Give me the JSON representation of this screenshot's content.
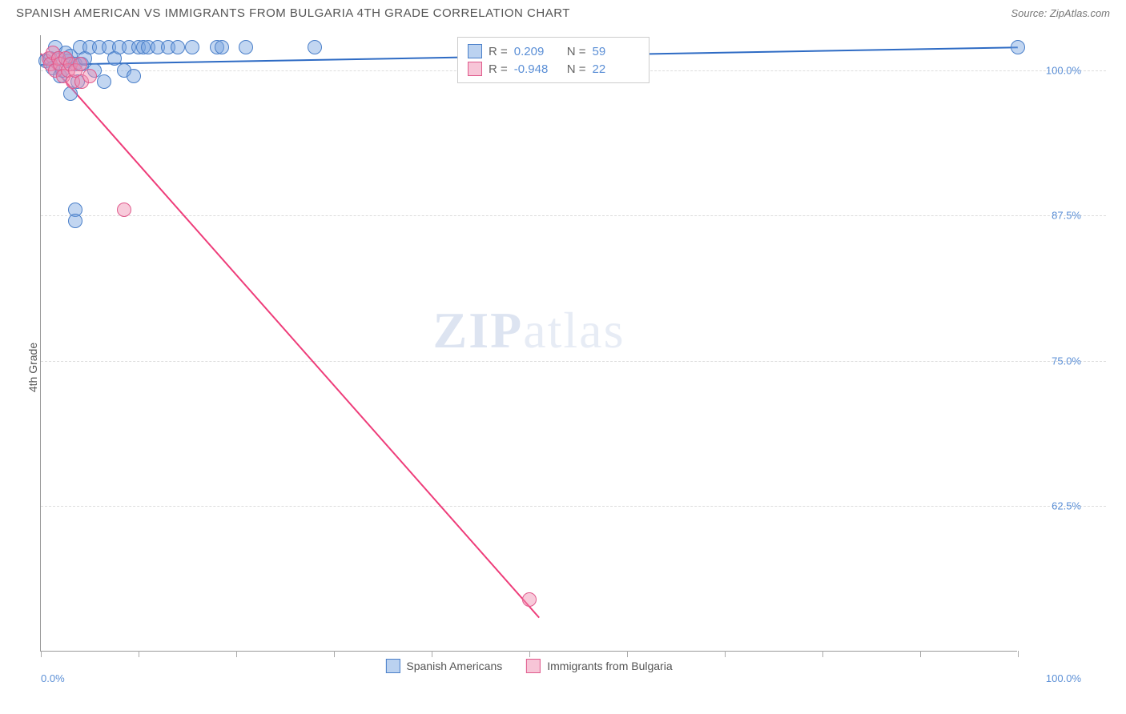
{
  "header": {
    "title": "SPANISH AMERICAN VS IMMIGRANTS FROM BULGARIA 4TH GRADE CORRELATION CHART",
    "source": "Source: ZipAtlas.com"
  },
  "chart": {
    "type": "scatter",
    "ylabel": "4th Grade",
    "xlim": [
      0,
      100
    ],
    "ylim": [
      50,
      103
    ],
    "background_color": "#ffffff",
    "grid_color": "#dddddd",
    "axis_color": "#999999",
    "tick_label_color": "#5b8fd6",
    "ytick_labels": [
      "62.5%",
      "75.0%",
      "87.5%",
      "100.0%"
    ],
    "ytick_values": [
      62.5,
      75.0,
      87.5,
      100.0
    ],
    "xtick_values": [
      0,
      10,
      20,
      30,
      40,
      50,
      60,
      70,
      80,
      90,
      100
    ],
    "xtick_labels_shown": {
      "0": "0.0%",
      "100": "100.0%"
    },
    "watermark": {
      "zip": "ZIP",
      "atlas": "atlas"
    },
    "series": [
      {
        "name": "Spanish Americans",
        "color_fill": "rgba(120,165,225,0.45)",
        "color_stroke": "#4a7fc9",
        "marker_radius": 9,
        "trend": {
          "x1": 0,
          "y1": 100.5,
          "x2": 100,
          "y2": 102.0,
          "color": "#2e6bc4",
          "width": 2
        },
        "points": [
          {
            "x": 0.5,
            "y": 100.8
          },
          {
            "x": 1.0,
            "y": 101.0
          },
          {
            "x": 1.2,
            "y": 100.2
          },
          {
            "x": 1.5,
            "y": 102.0
          },
          {
            "x": 1.8,
            "y": 101.0
          },
          {
            "x": 2.0,
            "y": 99.5
          },
          {
            "x": 2.2,
            "y": 100.0
          },
          {
            "x": 2.5,
            "y": 101.5
          },
          {
            "x": 2.8,
            "y": 100.8
          },
          {
            "x": 3.0,
            "y": 98.0
          },
          {
            "x": 3.0,
            "y": 101.2
          },
          {
            "x": 3.5,
            "y": 100.5
          },
          {
            "x": 3.8,
            "y": 99.0
          },
          {
            "x": 4.0,
            "y": 102.0
          },
          {
            "x": 4.2,
            "y": 100.5
          },
          {
            "x": 4.5,
            "y": 101.0
          },
          {
            "x": 5.0,
            "y": 102.0
          },
          {
            "x": 5.5,
            "y": 100.0
          },
          {
            "x": 6.0,
            "y": 102.0
          },
          {
            "x": 6.5,
            "y": 99.0
          },
          {
            "x": 7.0,
            "y": 102.0
          },
          {
            "x": 7.5,
            "y": 101.0
          },
          {
            "x": 8.0,
            "y": 102.0
          },
          {
            "x": 8.5,
            "y": 100.0
          },
          {
            "x": 9.0,
            "y": 102.0
          },
          {
            "x": 9.5,
            "y": 99.5
          },
          {
            "x": 10.0,
            "y": 102.0
          },
          {
            "x": 10.5,
            "y": 102.0
          },
          {
            "x": 11.0,
            "y": 102.0
          },
          {
            "x": 12.0,
            "y": 102.0
          },
          {
            "x": 13.0,
            "y": 102.0
          },
          {
            "x": 14.0,
            "y": 102.0
          },
          {
            "x": 15.5,
            "y": 102.0
          },
          {
            "x": 18.0,
            "y": 102.0
          },
          {
            "x": 18.5,
            "y": 102.0
          },
          {
            "x": 21.0,
            "y": 102.0
          },
          {
            "x": 28.0,
            "y": 102.0
          },
          {
            "x": 3.5,
            "y": 88.0
          },
          {
            "x": 3.5,
            "y": 87.0
          },
          {
            "x": 100.0,
            "y": 102.0
          }
        ]
      },
      {
        "name": "Immigrants from Bulgaria",
        "color_fill": "rgba(240,140,175,0.45)",
        "color_stroke": "#e05a8c",
        "marker_radius": 9,
        "trend": {
          "x1": 0,
          "y1": 101.5,
          "x2": 51,
          "y2": 53.0,
          "color": "#ee3d7a",
          "width": 2
        },
        "points": [
          {
            "x": 0.8,
            "y": 101.0
          },
          {
            "x": 1.0,
            "y": 100.5
          },
          {
            "x": 1.2,
            "y": 101.5
          },
          {
            "x": 1.5,
            "y": 100.0
          },
          {
            "x": 1.8,
            "y": 101.0
          },
          {
            "x": 2.0,
            "y": 100.5
          },
          {
            "x": 2.3,
            "y": 99.5
          },
          {
            "x": 2.5,
            "y": 101.0
          },
          {
            "x": 2.8,
            "y": 100.0
          },
          {
            "x": 3.0,
            "y": 100.5
          },
          {
            "x": 3.3,
            "y": 99.0
          },
          {
            "x": 3.5,
            "y": 100.0
          },
          {
            "x": 4.0,
            "y": 100.5
          },
          {
            "x": 4.2,
            "y": 99.0
          },
          {
            "x": 5.0,
            "y": 99.5
          },
          {
            "x": 8.5,
            "y": 88.0
          },
          {
            "x": 50.0,
            "y": 54.5
          }
        ]
      }
    ],
    "stats_box": {
      "rows": [
        {
          "swatch_fill": "rgba(120,165,225,0.5)",
          "swatch_stroke": "#4a7fc9",
          "r_label": "R =",
          "r_value": "0.209",
          "n_label": "N =",
          "n_value": "59"
        },
        {
          "swatch_fill": "rgba(240,140,175,0.5)",
          "swatch_stroke": "#e05a8c",
          "r_label": "R =",
          "r_value": "-0.948",
          "n_label": "N =",
          "n_value": "22"
        }
      ]
    },
    "legend": [
      {
        "swatch_fill": "rgba(120,165,225,0.5)",
        "swatch_stroke": "#4a7fc9",
        "label": "Spanish Americans"
      },
      {
        "swatch_fill": "rgba(240,140,175,0.5)",
        "swatch_stroke": "#e05a8c",
        "label": "Immigrants from Bulgaria"
      }
    ]
  }
}
